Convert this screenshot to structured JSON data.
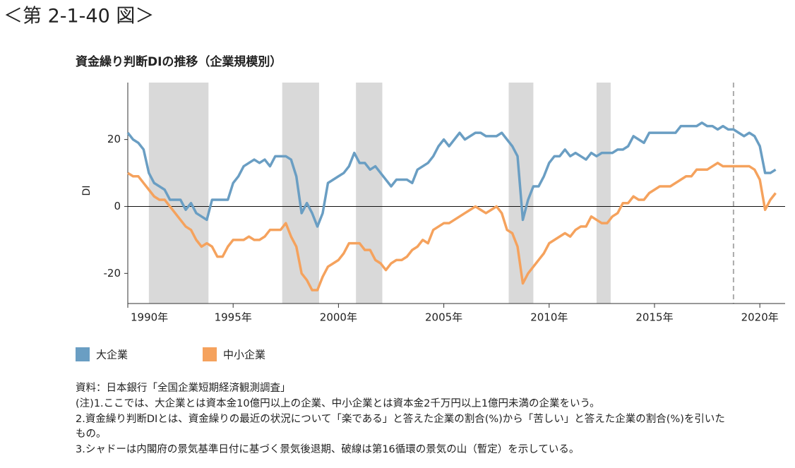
{
  "header": "＜第 2-1-40 図＞",
  "chart_data": {
    "type": "line",
    "title": "資金繰り判断DIの推移（企業規模別）",
    "ylabel": "DI",
    "xlim": [
      1990,
      2021.2
    ],
    "ylim": [
      -29,
      37
    ],
    "yticks": [
      -20,
      0,
      20
    ],
    "xticks": [
      {
        "value": 1990,
        "label": "1990年"
      },
      {
        "value": 1995,
        "label": "1995年"
      },
      {
        "value": 2000,
        "label": "2000年"
      },
      {
        "value": 2005,
        "label": "2005年"
      },
      {
        "value": 2010,
        "label": "2010年"
      },
      {
        "value": 2015,
        "label": "2015年"
      },
      {
        "value": 2020,
        "label": "2020年"
      }
    ],
    "shaded_periods": [
      [
        1991,
        1993.83
      ],
      [
        1997.33,
        1999.08
      ],
      [
        2000.83,
        2002.08
      ],
      [
        2008.08,
        2009.25
      ],
      [
        2012.25,
        2012.92
      ]
    ],
    "peak_line": 2018.75,
    "x": [
      1990,
      1990.25,
      1990.5,
      1990.75,
      1991,
      1991.25,
      1991.5,
      1991.75,
      1992,
      1992.25,
      1992.5,
      1992.75,
      1993,
      1993.25,
      1993.5,
      1993.75,
      1994,
      1994.25,
      1994.5,
      1994.75,
      1995,
      1995.25,
      1995.5,
      1995.75,
      1996,
      1996.25,
      1996.5,
      1996.75,
      1997,
      1997.25,
      1997.5,
      1997.75,
      1998,
      1998.25,
      1998.5,
      1998.75,
      1999,
      1999.25,
      1999.5,
      1999.75,
      2000,
      2000.25,
      2000.5,
      2000.75,
      2001,
      2001.25,
      2001.5,
      2001.75,
      2002,
      2002.25,
      2002.5,
      2002.75,
      2003,
      2003.25,
      2003.5,
      2003.75,
      2004,
      2004.25,
      2004.5,
      2004.75,
      2005,
      2005.25,
      2005.5,
      2005.75,
      2006,
      2006.25,
      2006.5,
      2006.75,
      2007,
      2007.25,
      2007.5,
      2007.75,
      2008,
      2008.25,
      2008.5,
      2008.75,
      2009,
      2009.25,
      2009.5,
      2009.75,
      2010,
      2010.25,
      2010.5,
      2010.75,
      2011,
      2011.25,
      2011.5,
      2011.75,
      2012,
      2012.25,
      2012.5,
      2012.75,
      2013,
      2013.25,
      2013.5,
      2013.75,
      2014,
      2014.25,
      2014.5,
      2014.75,
      2015,
      2015.25,
      2015.5,
      2015.75,
      2016,
      2016.25,
      2016.5,
      2016.75,
      2017,
      2017.25,
      2017.5,
      2017.75,
      2018,
      2018.25,
      2018.5,
      2018.75,
      2019,
      2019.25,
      2019.5,
      2019.75,
      2020,
      2020.25,
      2020.5,
      2020.75
    ],
    "series": [
      {
        "name": "大企業",
        "color": "#6a9ec3",
        "values": [
          22,
          20,
          19,
          17,
          10,
          7,
          6,
          5,
          2,
          2,
          2,
          -1,
          1,
          -2,
          -3,
          -4,
          2,
          2,
          2,
          2,
          7,
          9,
          12,
          13,
          14,
          13,
          14,
          12,
          15,
          15,
          15,
          14,
          9,
          -2,
          1,
          -2,
          -6,
          -2,
          7,
          8,
          9,
          10,
          12,
          16,
          13,
          13,
          11,
          12,
          10,
          8,
          6,
          8,
          8,
          8,
          7,
          11,
          12,
          13,
          15,
          18,
          20,
          18,
          20,
          22,
          20,
          21,
          22,
          22,
          21,
          21,
          21,
          22,
          20,
          18,
          15,
          -4,
          2,
          6,
          6,
          9,
          13,
          15,
          15,
          17,
          15,
          16,
          15,
          14,
          16,
          15,
          16,
          16,
          16,
          17,
          17,
          18,
          21,
          20,
          19,
          22,
          22,
          22,
          22,
          22,
          22,
          24,
          24,
          24,
          24,
          25,
          24,
          24,
          23,
          24,
          23,
          23,
          22,
          21,
          22,
          21,
          18,
          10,
          10,
          11
        ]
      },
      {
        "name": "中小企業",
        "color": "#f5a25d",
        "values": [
          10,
          9,
          9,
          7,
          5,
          3,
          2,
          2,
          0,
          -2,
          -4,
          -6,
          -7,
          -10,
          -12,
          -11,
          -12,
          -15,
          -15,
          -12,
          -10,
          -10,
          -10,
          -9,
          -10,
          -10,
          -9,
          -7,
          -7,
          -7,
          -5,
          -9,
          -12,
          -20,
          -22,
          -25,
          -25,
          -21,
          -18,
          -17,
          -16,
          -14,
          -11,
          -11,
          -11,
          -13,
          -13,
          -16,
          -17,
          -19,
          -17,
          -16,
          -16,
          -15,
          -13,
          -12,
          -10,
          -11,
          -7,
          -6,
          -5,
          -5,
          -4,
          -3,
          -2,
          -1,
          0,
          -1,
          -2,
          -1,
          0,
          -2,
          -7,
          -8,
          -12,
          -23,
          -20,
          -18,
          -16,
          -14,
          -11,
          -10,
          -9,
          -8,
          -9,
          -7,
          -6,
          -6,
          -3,
          -4,
          -5,
          -5,
          -3,
          -2,
          1,
          1,
          3,
          2,
          2,
          4,
          5,
          6,
          6,
          6,
          7,
          8,
          9,
          9,
          11,
          11,
          11,
          12,
          13,
          12,
          12,
          12,
          12,
          12,
          12,
          11,
          8,
          -1,
          2,
          4
        ]
      }
    ]
  },
  "notes": [
    "資料：日本銀行「全国企業短期経済観測調査」",
    "(注)1.ここでは、大企業とは資本金10億円以上の企業、中小企業とは資本金2千万円以上1億円未満の企業をいう。",
    "2.資金繰り判断DIとは、資金繰りの最近の状況について「楽である」と答えた企業の割合(%)から「苦しい」と答えた企業の割合(%)を引いた",
    "もの。",
    "3.シャドーは内閣府の景気基準日付に基づく景気後退期、破線は第16循環の景気の山（暫定）を示している。"
  ]
}
